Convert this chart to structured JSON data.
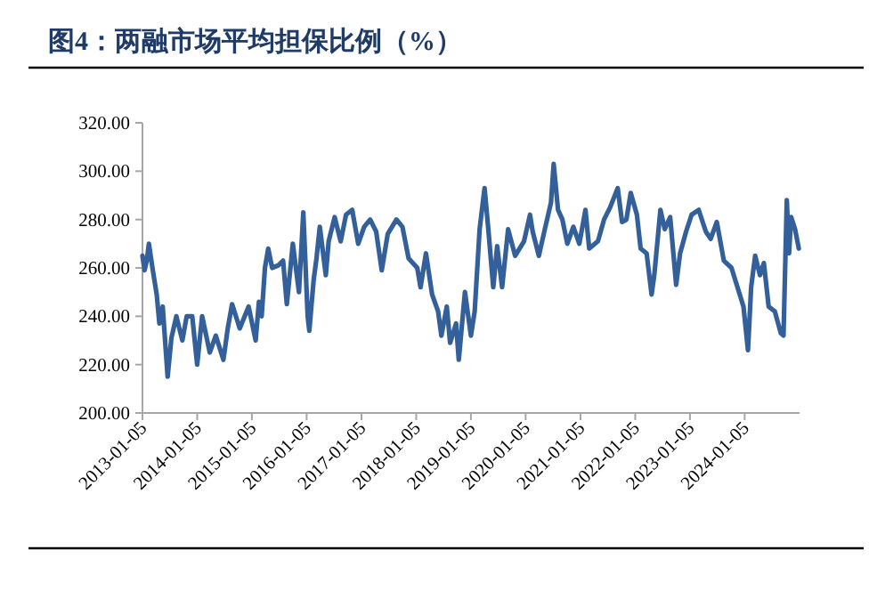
{
  "chart_data": {
    "type": "line",
    "title": "图4：两融市场平均担保比例（%）",
    "ylim": [
      200,
      320
    ],
    "yticks": [
      {
        "value": 200,
        "label": "200.00"
      },
      {
        "value": 220,
        "label": "220.00"
      },
      {
        "value": 240,
        "label": "240.00"
      },
      {
        "value": 260,
        "label": "260.00"
      },
      {
        "value": 280,
        "label": "280.00"
      },
      {
        "value": 300,
        "label": "300.00"
      },
      {
        "value": 320,
        "label": "320.00"
      }
    ],
    "xlim": [
      "2013-01-05",
      "2025-01-05"
    ],
    "xticks": [
      "2013-01-05",
      "2014-01-05",
      "2015-01-05",
      "2016-01-05",
      "2017-01-05",
      "2018-01-05",
      "2019-01-05",
      "2020-01-05",
      "2021-01-05",
      "2022-01-05",
      "2023-01-05",
      "2024-01-05"
    ],
    "grid": false,
    "marker": "none",
    "line_style": "solid",
    "series": [
      {
        "color": "#33609a",
        "x": [
          "2013-01-05",
          "2013-01-19",
          "2013-02-03",
          "2013-02-17",
          "2013-03-15",
          "2013-04-10",
          "2013-04-28",
          "2013-05-20",
          "2013-06-22",
          "2013-07-17",
          "2013-08-19",
          "2013-09-28",
          "2013-10-27",
          "2013-12-03",
          "2014-01-05",
          "2014-02-07",
          "2014-03-30",
          "2014-05-09",
          "2014-06-29",
          "2014-07-28",
          "2014-08-26",
          "2014-10-16",
          "2014-12-14",
          "2015-01-30",
          "2015-02-21",
          "2015-03-11",
          "2015-04-02",
          "2015-04-24",
          "2015-05-20",
          "2015-06-29",
          "2015-08-01",
          "2015-08-26",
          "2015-10-05",
          "2015-11-15",
          "2015-12-14",
          "2016-01-12",
          "2016-01-23",
          "2016-02-21",
          "2016-03-11",
          "2016-04-02",
          "2016-05-12",
          "2016-05-31",
          "2016-07-10",
          "2016-08-19",
          "2016-09-24",
          "2016-11-04",
          "2016-12-14",
          "2017-01-23",
          "2017-03-04",
          "2017-04-13",
          "2017-05-20",
          "2017-06-29",
          "2017-08-26",
          "2017-10-05",
          "2017-11-15",
          "2018-01-12",
          "2018-02-03",
          "2018-03-11",
          "2018-04-21",
          "2018-05-31",
          "2018-06-22",
          "2018-07-28",
          "2018-08-19",
          "2018-09-28",
          "2018-10-16",
          "2018-11-26",
          "2019-01-05",
          "2019-01-30",
          "2019-03-04",
          "2019-04-06",
          "2019-05-01",
          "2019-06-03",
          "2019-06-29",
          "2019-08-01",
          "2019-09-10",
          "2019-10-27",
          "2019-12-25",
          "2020-02-03",
          "2020-02-21",
          "2020-04-02",
          "2020-05-12",
          "2020-06-22",
          "2020-07-10",
          "2020-08-08",
          "2020-09-06",
          "2020-10-09",
          "2020-11-18",
          "2020-12-28",
          "2021-02-07",
          "2021-03-04",
          "2021-05-01",
          "2021-06-11",
          "2021-07-21",
          "2021-09-10",
          "2021-10-09",
          "2021-11-07",
          "2021-12-06",
          "2022-01-16",
          "2022-02-10",
          "2022-03-22",
          "2022-04-24",
          "2022-05-12",
          "2022-06-22",
          "2022-07-21",
          "2022-08-26",
          "2022-10-05",
          "2022-10-31",
          "2022-12-10",
          "2023-01-16",
          "2023-03-04",
          "2023-04-21",
          "2023-05-23",
          "2023-07-03",
          "2023-08-19",
          "2023-10-09",
          "2023-11-18",
          "2023-12-28",
          "2024-01-27",
          "2024-02-17",
          "2024-03-15",
          "2024-04-16",
          "2024-05-12",
          "2024-06-13",
          "2024-07-24",
          "2024-09-02",
          "2024-09-20",
          "2024-10-12",
          "2024-10-27",
          "2024-11-10",
          "2024-12-06",
          "2024-12-31"
        ],
        "values": [
          265,
          259,
          263,
          270,
          259,
          249,
          237,
          244,
          215,
          231,
          240,
          230,
          240,
          240,
          220,
          240,
          225,
          232,
          222,
          235,
          245,
          235,
          244,
          230,
          246,
          240,
          260,
          268,
          260,
          261,
          263,
          245,
          270,
          250,
          283,
          240,
          234,
          255,
          264,
          277,
          257,
          271,
          281,
          271,
          282,
          284,
          270,
          277,
          280,
          275,
          259,
          274,
          280,
          277,
          264,
          260,
          252,
          266,
          249,
          242,
          232,
          244,
          229,
          237,
          222,
          250,
          232,
          242,
          276,
          293,
          276,
          252,
          269,
          252,
          276,
          265,
          271,
          282,
          275,
          265,
          276,
          287,
          303,
          284,
          280,
          270,
          277,
          270,
          284,
          268,
          271,
          280,
          285,
          293,
          279,
          280,
          291,
          282,
          268,
          266,
          249,
          257,
          284,
          276,
          281,
          253,
          266,
          275,
          282,
          284,
          275,
          272,
          279,
          263,
          260,
          252,
          244,
          226,
          252,
          265,
          257,
          262,
          244,
          242,
          233,
          232,
          288,
          266,
          281,
          276,
          268
        ]
      }
    ]
  }
}
